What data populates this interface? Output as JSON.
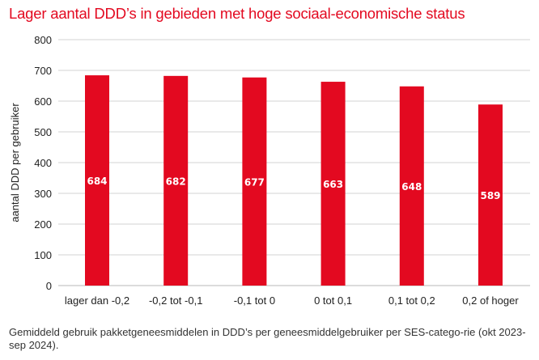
{
  "chart_data": {
    "type": "bar",
    "title": "Lager aantal DDD’s in gebieden met hoge sociaal-economische status",
    "xlabel": "",
    "ylabel": "aantal DDD per gebruiker",
    "categories": [
      "lager dan -0,2",
      "-0,2 tot -0,1",
      "-0,1 tot 0",
      "0 tot 0,1",
      "0,1 tot 0,2",
      "0,2 of hoger"
    ],
    "values": [
      684,
      682,
      677,
      663,
      648,
      589
    ],
    "data_labels": [
      "684",
      "682",
      "677",
      "663",
      "648",
      "589"
    ],
    "ylim": [
      0,
      800
    ],
    "yticks": [
      0,
      100,
      200,
      300,
      400,
      500,
      600,
      700,
      800
    ],
    "grid": true,
    "legend": "none",
    "colors": {
      "bar": "#e30920",
      "grid": "#dcdcdc",
      "title": "#e30920",
      "label": "#ffffff"
    }
  },
  "caption": "Gemiddeld gebruik pakketgeneesmiddelen in DDD’s per geneesmiddelgebruiker per SES-catego-rie (okt 2023-sep 2024)."
}
